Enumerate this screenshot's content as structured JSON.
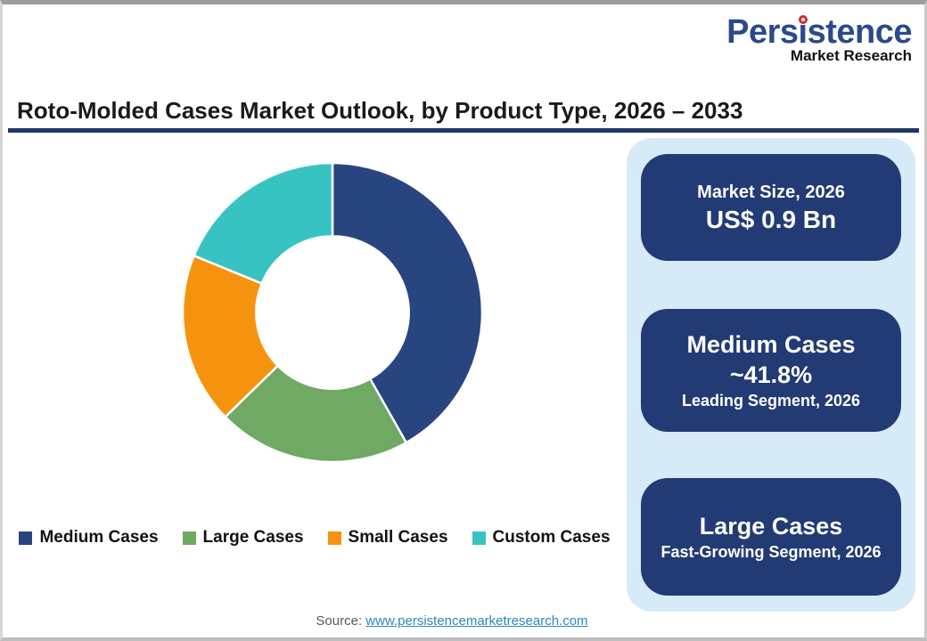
{
  "logo": {
    "brand": "Persistence",
    "sub": "Market Research",
    "brand_color": "#2b4a8c",
    "dot_color": "#d7282f"
  },
  "header": {
    "title": "Roto-Molded Cases Market Outlook, by Product Type, 2026 – 2033",
    "underline_color": "#1f3864"
  },
  "chart_data": {
    "type": "pie",
    "subtype": "donut",
    "title": "Roto-Molded Cases Market Outlook, by Product Type, 2026 – 2033",
    "categories": [
      "Medium Cases",
      "Large Cases",
      "Small Cases",
      "Custom Cases"
    ],
    "values": [
      41.8,
      20.9,
      18.5,
      18.8
    ],
    "unit": "%",
    "colors": [
      "#294580",
      "#6fa963",
      "#f5930f",
      "#38c3c3"
    ],
    "start_angle_deg": 0,
    "direction": "clockwise",
    "donut_hole_ratio": 0.51,
    "slice_border_color": "#ffffff",
    "legend_position": "bottom"
  },
  "info_panel": {
    "background": "#d7eaf8",
    "card_color": "#223b74",
    "cards": [
      {
        "line1": "Market Size, 2026",
        "line2": "US$ 0.9 Bn"
      },
      {
        "line1": "Medium Cases",
        "line2": "~41.8%",
        "line3": "Leading Segment, 2026"
      },
      {
        "line1": "Large Cases",
        "line2": "Fast-Growing Segment, 2026"
      }
    ]
  },
  "footer": {
    "source_label": "Source:",
    "source_link": "www.persistencemarketresearch.com"
  }
}
